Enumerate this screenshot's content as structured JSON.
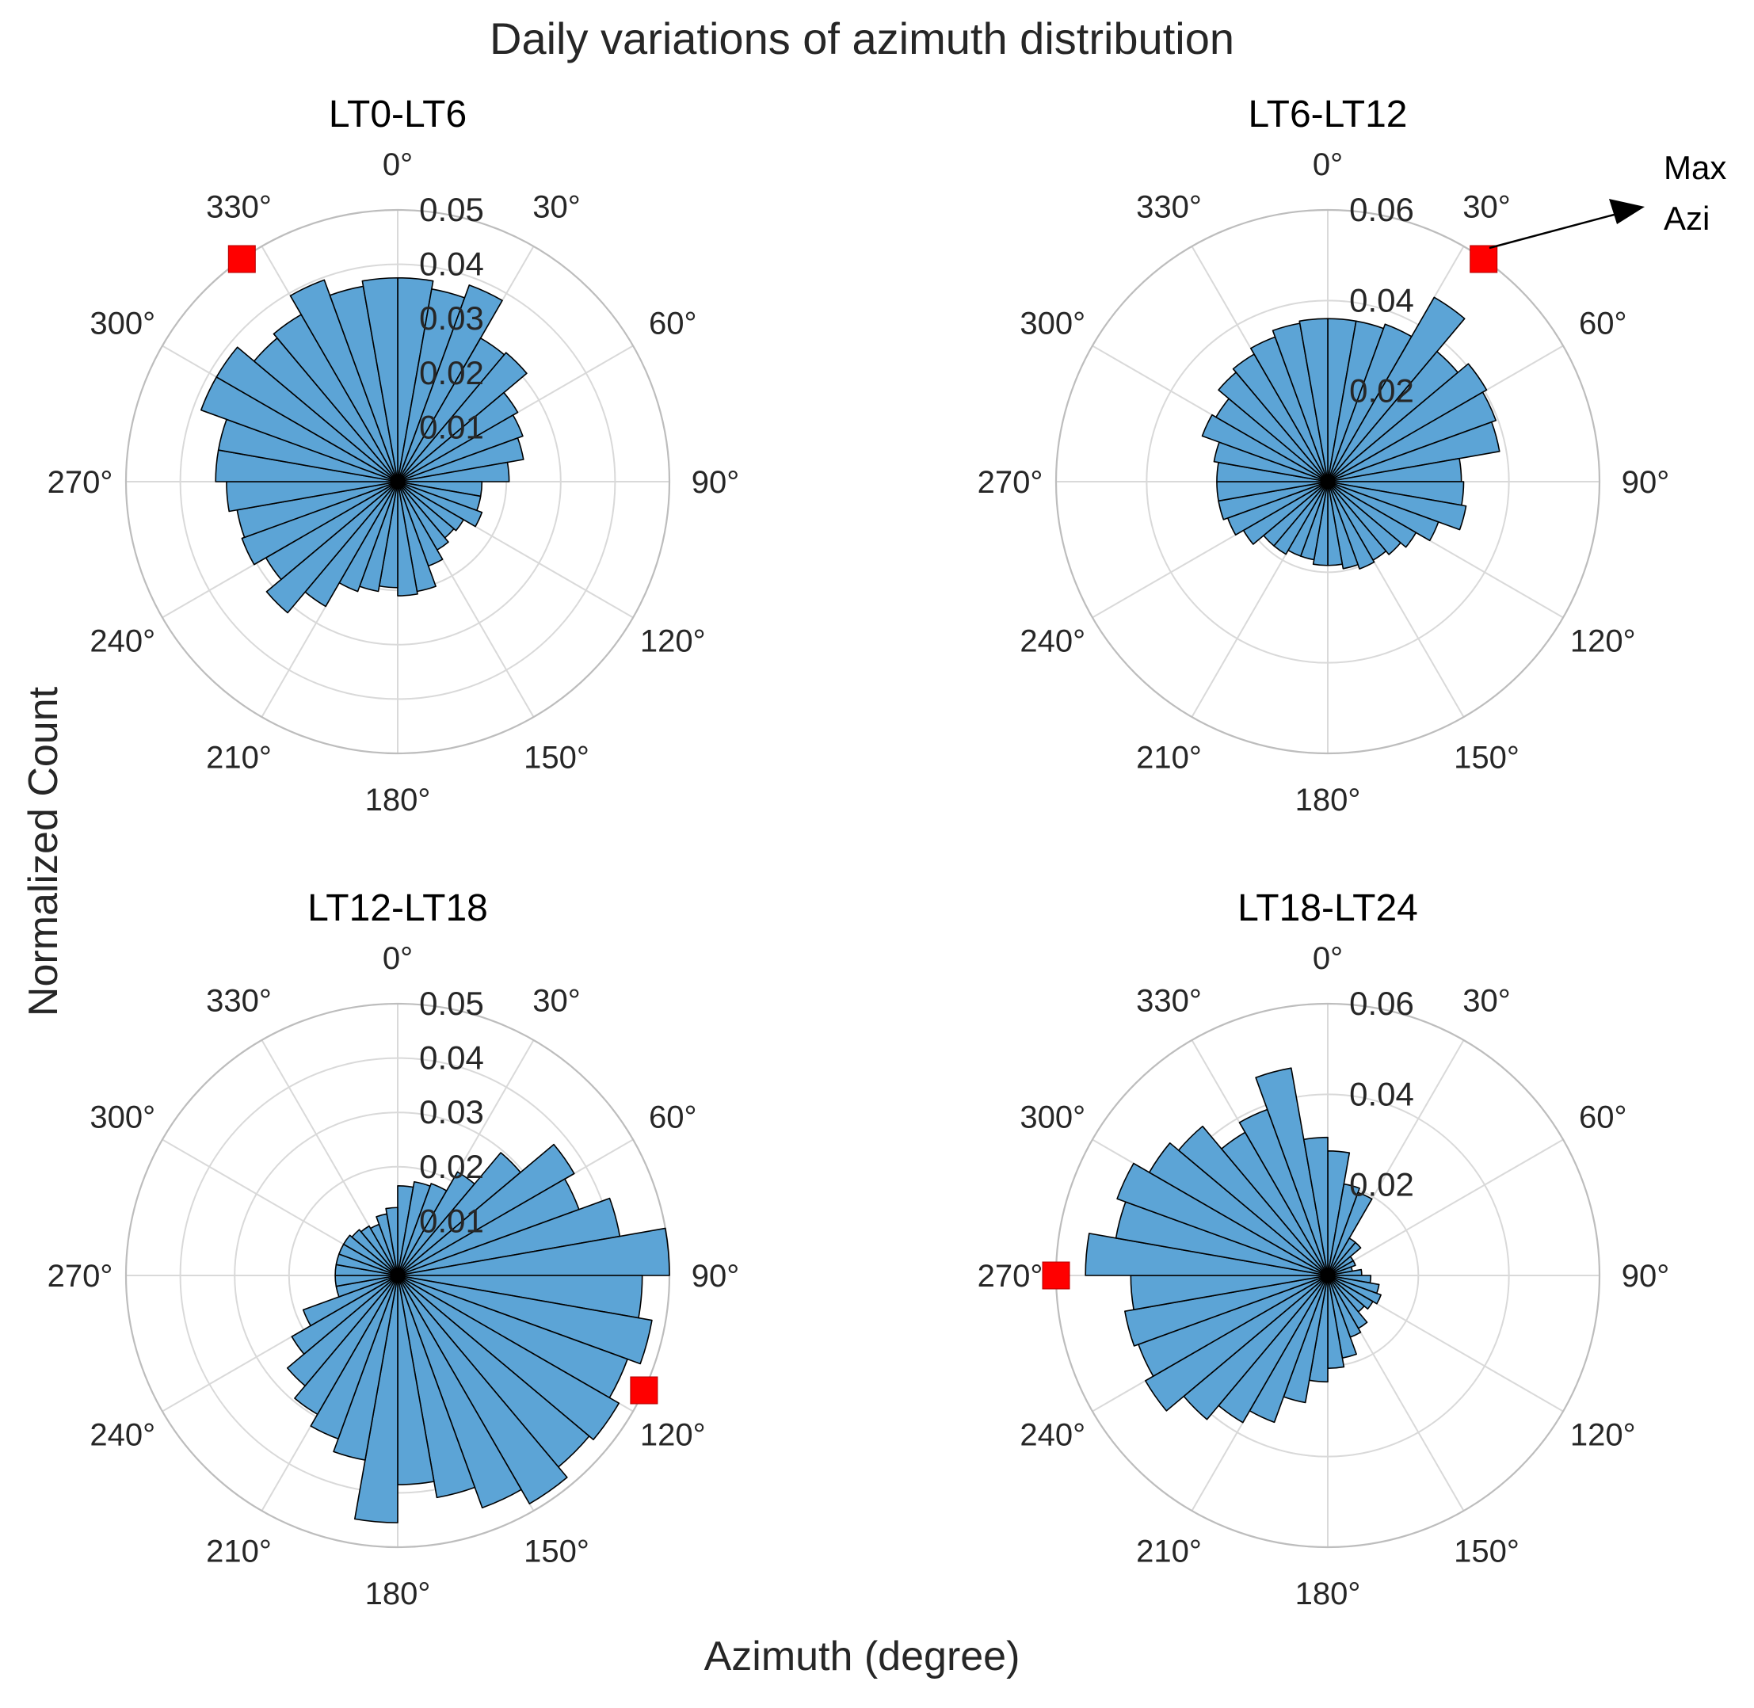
{
  "figure": {
    "title": "Daily variations of azimuth distribution",
    "xlabel": "Azimuth (degree)",
    "ylabel": "Normalized Count"
  },
  "colors": {
    "bar_fill": "#5ca4d6",
    "bar_edge": "#000000",
    "grid": "#d9d9d9",
    "outer_ring": "#bdbdbd",
    "marker": "#ff0000",
    "text": "#262626"
  },
  "annotation": {
    "line1": "Max",
    "line2": "Azi",
    "panel": 1
  },
  "chart_data": [
    {
      "type": "polar-histogram",
      "title": "LT0-LT6",
      "bin_width_deg": 10,
      "rmax": 0.05,
      "rticks": [
        0.01,
        0.02,
        0.03,
        0.04,
        0.05
      ],
      "rtick_labels": [
        "0.01",
        "0.02",
        "0.03",
        "0.04",
        "0.05"
      ],
      "theta_tick_labels": [
        "0°",
        "30°",
        "60°",
        "90°",
        "120°",
        "150°",
        "180°",
        "210°",
        "240°",
        "270°",
        "300°",
        "330°"
      ],
      "max_azimuth_deg": 325,
      "values": [
        0.0375,
        0.036,
        0.0385,
        0.0305,
        0.031,
        0.0255,
        0.0245,
        0.0235,
        0.0205,
        0.0155,
        0.0155,
        0.0165,
        0.014,
        0.0135,
        0.0145,
        0.0165,
        0.0205,
        0.021,
        0.0195,
        0.0205,
        0.0215,
        0.0265,
        0.0315,
        0.028,
        0.0305,
        0.03,
        0.0315,
        0.0335,
        0.0335,
        0.0385,
        0.0385,
        0.0345,
        0.0355,
        0.0395,
        0.0365,
        0.0375
      ]
    },
    {
      "type": "polar-histogram",
      "title": "LT6-LT12",
      "bin_width_deg": 10,
      "rmax": 0.06,
      "rticks": [
        0.02,
        0.04,
        0.06
      ],
      "rtick_labels": [
        "0.02",
        "0.04",
        "0.06"
      ],
      "theta_tick_labels": [
        "0°",
        "30°",
        "60°",
        "90°",
        "120°",
        "150°",
        "180°",
        "210°",
        "240°",
        "270°",
        "300°",
        "330°"
      ],
      "max_azimuth_deg": 35,
      "values": [
        0.036,
        0.036,
        0.037,
        0.047,
        0.0375,
        0.0405,
        0.0395,
        0.0385,
        0.0295,
        0.03,
        0.031,
        0.026,
        0.0225,
        0.021,
        0.02,
        0.0205,
        0.0195,
        0.0185,
        0.0185,
        0.0175,
        0.0175,
        0.0185,
        0.0185,
        0.0215,
        0.0235,
        0.0245,
        0.0245,
        0.0245,
        0.0255,
        0.0295,
        0.0285,
        0.0315,
        0.0325,
        0.034,
        0.0355,
        0.036
      ]
    },
    {
      "type": "polar-histogram",
      "title": "LT12-LT18",
      "bin_width_deg": 10,
      "rmax": 0.05,
      "rticks": [
        0.01,
        0.02,
        0.03,
        0.04,
        0.05
      ],
      "rtick_labels": [
        "0.01",
        "0.02",
        "0.03",
        "0.04",
        "0.05"
      ],
      "theta_tick_labels": [
        "0°",
        "30°",
        "60°",
        "90°",
        "120°",
        "150°",
        "180°",
        "210°",
        "240°",
        "270°",
        "300°",
        "330°"
      ],
      "max_azimuth_deg": 115,
      "values": [
        0.0165,
        0.0175,
        0.018,
        0.022,
        0.0295,
        0.0375,
        0.0355,
        0.0415,
        0.05,
        0.045,
        0.0475,
        0.045,
        0.047,
        0.046,
        0.0485,
        0.0455,
        0.0415,
        0.0385,
        0.0455,
        0.0345,
        0.032,
        0.0295,
        0.0265,
        0.0225,
        0.0185,
        0.0115,
        0.0115,
        0.0115,
        0.0115,
        0.0115,
        0.0115,
        0.011,
        0.0105,
        0.01,
        0.0115,
        0.0125
      ]
    },
    {
      "type": "polar-histogram",
      "title": "LT18-LT24",
      "bin_width_deg": 10,
      "rmax": 0.06,
      "rticks": [
        0.02,
        0.04,
        0.06
      ],
      "rtick_labels": [
        "0.02",
        "0.04",
        "0.06"
      ],
      "theta_tick_labels": [
        "0°",
        "30°",
        "60°",
        "90°",
        "120°",
        "150°",
        "180°",
        "210°",
        "240°",
        "270°",
        "300°",
        "330°"
      ],
      "max_azimuth_deg": 270,
      "values": [
        0.0275,
        0.0205,
        0.0195,
        0.0095,
        0.0095,
        0.0065,
        0.0065,
        0.0055,
        0.0075,
        0.0095,
        0.0115,
        0.0125,
        0.0115,
        0.0105,
        0.0135,
        0.0145,
        0.0185,
        0.0205,
        0.0235,
        0.0285,
        0.0345,
        0.0375,
        0.0415,
        0.0465,
        0.0445,
        0.0455,
        0.0435,
        0.0535,
        0.0475,
        0.0495,
        0.0455,
        0.043,
        0.0365,
        0.039,
        0.0465,
        0.0305
      ]
    }
  ]
}
